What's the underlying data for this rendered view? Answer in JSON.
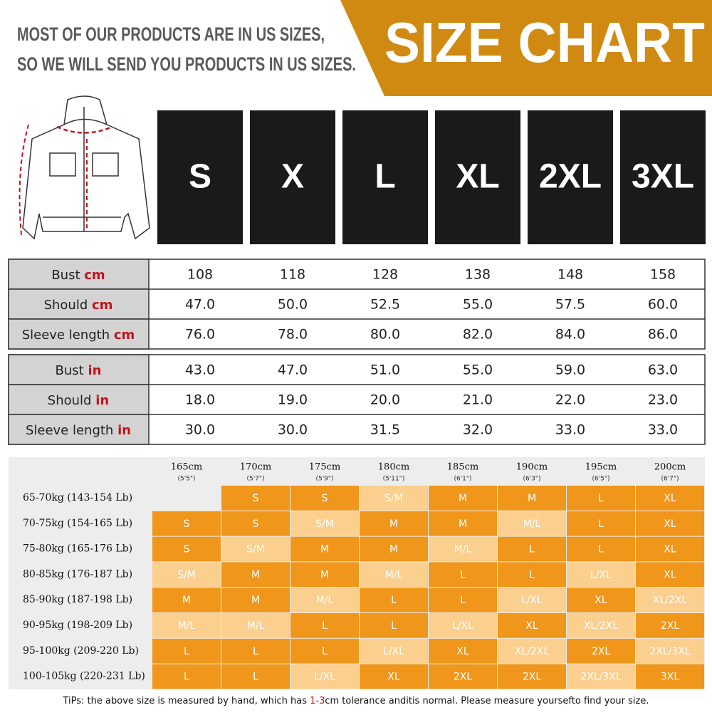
{
  "header": {
    "notice": [
      "MOST OF OUR PRODUCTS ARE IN US SIZES,",
      "SO WE WILL SEND YOU PRODUCTS IN US SIZES."
    ],
    "title": "SIZE CHART"
  },
  "sizes": [
    "S",
    "X",
    "L",
    "XL",
    "2XL",
    "3XL"
  ],
  "cm_table": {
    "rows": [
      {
        "label": "Bust",
        "unit": "cm",
        "values": [
          "108",
          "118",
          "128",
          "138",
          "148",
          "158"
        ]
      },
      {
        "label": "Should",
        "unit": "cm",
        "values": [
          "47.0",
          "50.0",
          "52.5",
          "55.0",
          "57.5",
          "60.0"
        ]
      },
      {
        "label": "Sleeve length",
        "unit": "cm",
        "values": [
          "76.0",
          "78.0",
          "80.0",
          "82.0",
          "84.0",
          "86.0"
        ]
      }
    ]
  },
  "in_table": {
    "rows": [
      {
        "label": "Bust",
        "unit": "in",
        "values": [
          "43.0",
          "47.0",
          "51.0",
          "55.0",
          "59.0",
          "63.0"
        ]
      },
      {
        "label": "Should",
        "unit": "in",
        "values": [
          "18.0",
          "19.0",
          "20.0",
          "21.0",
          "22.0",
          "23.0"
        ]
      },
      {
        "label": "Sleeve length",
        "unit": "in",
        "values": [
          "30.0",
          "30.0",
          "31.5",
          "32.0",
          "33.0",
          "33.0"
        ]
      }
    ]
  },
  "fit_grid": {
    "colors": {
      "single": "#f0961a",
      "combined": "#fbcf8e"
    },
    "heights": [
      {
        "cm": "165cm",
        "ft": "(5'5\")"
      },
      {
        "cm": "170cm",
        "ft": "(5'7\")"
      },
      {
        "cm": "175cm",
        "ft": "(5'9\")"
      },
      {
        "cm": "180cm",
        "ft": "(5'11\")"
      },
      {
        "cm": "185cm",
        "ft": "(6'1\")"
      },
      {
        "cm": "190cm",
        "ft": "(6'3\")"
      },
      {
        "cm": "195cm",
        "ft": "(6'5\")"
      },
      {
        "cm": "200cm",
        "ft": "(6'7\")"
      }
    ],
    "rows": [
      {
        "weight": "65-70kg (143-154 Lb)",
        "cells": [
          null,
          "S",
          "S",
          "S/M",
          "M",
          "M",
          "L",
          "XL"
        ]
      },
      {
        "weight": "70-75kg (154-165 Lb)",
        "cells": [
          "S",
          "S",
          "S/M",
          "M",
          "M",
          "M/L",
          "L",
          "XL"
        ]
      },
      {
        "weight": "75-80kg (165-176 Lb)",
        "cells": [
          "S",
          "S/M",
          "M",
          "M",
          "M/L",
          "L",
          "L",
          "XL"
        ]
      },
      {
        "weight": "80-85kg (176-187 Lb)",
        "cells": [
          "S/M",
          "M",
          "M",
          "M/L",
          "L",
          "L",
          "L/XL",
          "XL"
        ]
      },
      {
        "weight": "85-90kg (187-198 Lb)",
        "cells": [
          "M",
          "M",
          "M/L",
          "L",
          "L",
          "L/XL",
          "XL",
          "XL/2XL"
        ]
      },
      {
        "weight": "90-95kg (198-209 Lb)",
        "cells": [
          "M/L",
          "M/L",
          "L",
          "L",
          "L/XL",
          "XL",
          "XL/2XL",
          "2XL"
        ]
      },
      {
        "weight": "95-100kg (209-220 Lb)",
        "cells": [
          "L",
          "L",
          "L",
          "L/XL",
          "XL",
          "XL/2XL",
          "2XL",
          "2XL/3XL"
        ]
      },
      {
        "weight": "100-105kg (220-231 Lb)",
        "cells": [
          "L",
          "L",
          "L/XL",
          "XL",
          "2XL",
          "2XL",
          "2XL/3XL",
          "3XL"
        ]
      }
    ]
  },
  "tip": [
    "TiPs: the above size is measured by hand, which has ",
    "1-3",
    "cm tolerance anditis normal. Please measure yoursefto find your size."
  ]
}
